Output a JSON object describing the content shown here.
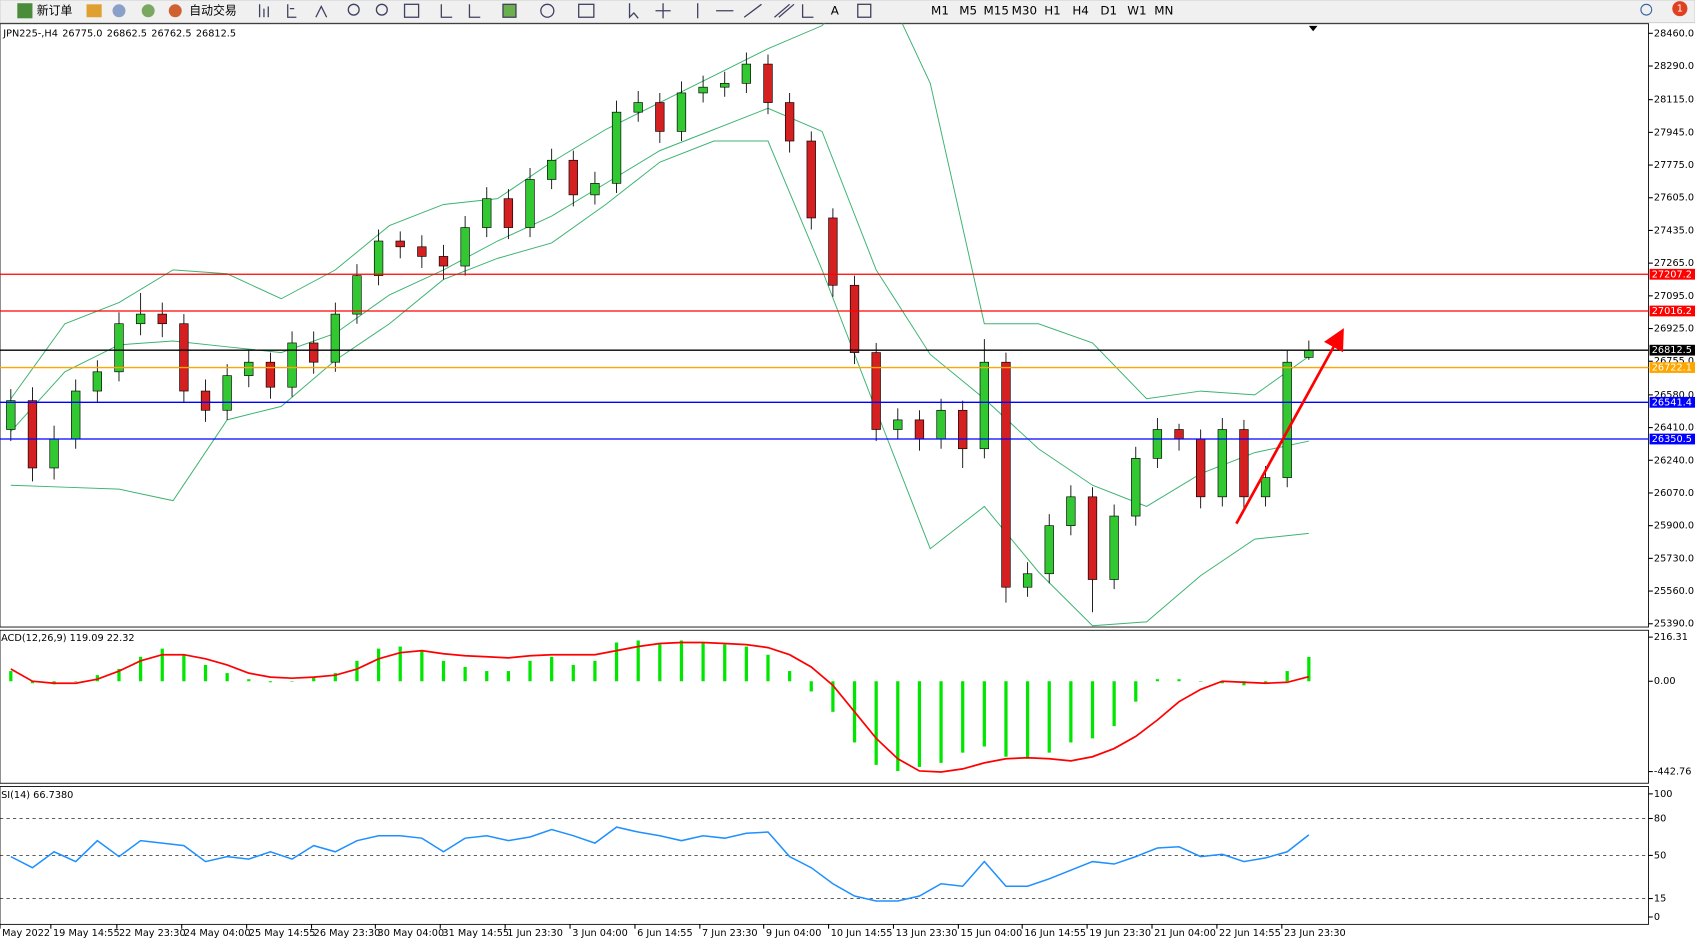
{
  "toolbar": {
    "new_order": "新订单",
    "auto_trading": "自动交易",
    "timeframes": [
      "M1",
      "M5",
      "M15",
      "M30",
      "H1",
      "H4",
      "D1",
      "W1",
      "MN"
    ],
    "badge": "1"
  },
  "chart_data": [
    {
      "type": "candlestick",
      "title": "JPN225-,H4",
      "ohlc_labels": [
        "26775.0",
        "26862.5",
        "26762.5",
        "26812.5"
      ],
      "up_color": "#32c832",
      "down_color": "#d42020",
      "xlim": [
        -0.5,
        75.7
      ],
      "xticks": [
        {
          "value": -0.5,
          "label": "May 2022"
        },
        {
          "value": 1.85,
          "label": "19 May 14:55"
        },
        {
          "value": 4.9,
          "label": "22 May 23:30"
        },
        {
          "value": 7.9,
          "label": "24 May 04:00"
        },
        {
          "value": 10.9,
          "label": "25 May 14:55"
        },
        {
          "value": 13.9,
          "label": "26 May 23:30"
        },
        {
          "value": 16.85,
          "label": "30 May 04:00"
        },
        {
          "value": 19.85,
          "label": "31 May 14:55"
        },
        {
          "value": 22.85,
          "label": "1 Jun 23:30"
        },
        {
          "value": 25.85,
          "label": "3 Jun 04:00"
        },
        {
          "value": 28.85,
          "label": "6 Jun 14:55"
        },
        {
          "value": 31.85,
          "label": "7 Jun 23:30"
        },
        {
          "value": 34.8,
          "label": "9 Jun 04:00"
        },
        {
          "value": 37.8,
          "label": "10 Jun 14:55"
        },
        {
          "value": 40.8,
          "label": "13 Jun 23:30"
        },
        {
          "value": 43.8,
          "label": "15 Jun 04:00"
        },
        {
          "value": 46.75,
          "label": "16 Jun 14:55"
        },
        {
          "value": 49.75,
          "label": "19 Jun 23:30"
        },
        {
          "value": 52.75,
          "label": "21 Jun 04:00"
        },
        {
          "value": 55.75,
          "label": "22 Jun 14:55"
        },
        {
          "value": 58.75,
          "label": "23 Jun 23:30"
        }
      ],
      "ylim": [
        25373,
        28510
      ],
      "yticks": [
        {
          "value": 28460,
          "label": "28460.0"
        },
        {
          "value": 28290,
          "label": "28290.0"
        },
        {
          "value": 28115,
          "label": "28115.0"
        },
        {
          "value": 27945,
          "label": "27945.0"
        },
        {
          "value": 27775,
          "label": "27775.0"
        },
        {
          "value": 27605,
          "label": "27605.0"
        },
        {
          "value": 27435,
          "label": "27435.0"
        },
        {
          "value": 27265,
          "label": "27265.0"
        },
        {
          "value": 27095,
          "label": "27095.0"
        },
        {
          "value": 26925,
          "label": "26925.0"
        },
        {
          "value": 26755,
          "label": "26755.0"
        },
        {
          "value": 26580,
          "label": "26580.0"
        },
        {
          "value": 26410,
          "label": "26410.0"
        },
        {
          "value": 26240,
          "label": "26240.0"
        },
        {
          "value": 26070,
          "label": "26070.0"
        },
        {
          "value": 25900,
          "label": "25900.0"
        },
        {
          "value": 25730,
          "label": "25730.0"
        },
        {
          "value": 25560,
          "label": "25560.0"
        },
        {
          "value": 25390,
          "label": "25390.0"
        }
      ],
      "open": [
        26400,
        26550,
        26200,
        26350,
        26600,
        26700,
        26950,
        27000,
        26950,
        26600,
        26500,
        26680,
        26750,
        26620,
        26850,
        26750,
        27000,
        27200,
        27380,
        27350,
        27300,
        27250,
        27450,
        27600,
        27450,
        27700,
        27800,
        27620,
        27680,
        28050,
        28100,
        27950,
        28150,
        28180,
        28200,
        28300,
        28100,
        27900,
        27500,
        27150,
        26800,
        26400,
        26450,
        26350,
        26500,
        26300,
        26750,
        25580,
        25650,
        25900,
        26050,
        25620,
        25950,
        26250,
        26400,
        26350,
        26050,
        26400,
        26050,
        26150,
        26775
      ],
      "high": [
        26610,
        26620,
        26420,
        26660,
        26760,
        27010,
        27110,
        27060,
        27000,
        26660,
        26740,
        26810,
        26800,
        26910,
        26910,
        27060,
        27260,
        27440,
        27430,
        27410,
        27360,
        27510,
        27660,
        27650,
        27760,
        27860,
        27850,
        27740,
        28110,
        28160,
        28150,
        28210,
        28240,
        28260,
        28360,
        28350,
        28150,
        27950,
        27550,
        27200,
        26850,
        26510,
        26500,
        26560,
        26550,
        26870,
        26800,
        25710,
        25960,
        26110,
        26100,
        26010,
        26310,
        26460,
        26430,
        26400,
        26460,
        26450,
        26210,
        26810,
        26862.5
      ],
      "low": [
        26340,
        26130,
        26140,
        26300,
        26540,
        26650,
        26890,
        26880,
        26540,
        26440,
        26450,
        26620,
        26560,
        26570,
        26690,
        26700,
        26950,
        27150,
        27290,
        27240,
        27180,
        27200,
        27400,
        27390,
        27400,
        27650,
        27560,
        27570,
        27630,
        28000,
        27890,
        27900,
        28100,
        28130,
        28150,
        28040,
        27840,
        27440,
        27090,
        26740,
        26340,
        26350,
        26290,
        26300,
        26200,
        26250,
        25500,
        25530,
        25600,
        25850,
        25450,
        25570,
        25900,
        26200,
        26290,
        25990,
        26000,
        25990,
        26000,
        26100,
        26762.5
      ],
      "close": [
        26550,
        26200,
        26350,
        26600,
        26700,
        26950,
        27000,
        26950,
        26600,
        26500,
        26680,
        26750,
        26620,
        26850,
        26750,
        27000,
        27200,
        27380,
        27350,
        27300,
        27250,
        27450,
        27600,
        27450,
        27700,
        27800,
        27620,
        27680,
        28050,
        28100,
        27950,
        28150,
        28180,
        28200,
        28300,
        28100,
        27900,
        27500,
        27150,
        26800,
        26400,
        26450,
        26350,
        26500,
        26300,
        26750,
        25580,
        25650,
        25900,
        26050,
        25620,
        25950,
        26250,
        26400,
        26350,
        26050,
        26400,
        26050,
        26150,
        26750,
        26812.5
      ],
      "bollinger": {
        "color": "#3cb371",
        "x": [
          0,
          2.5,
          5,
          7.5,
          10,
          12.5,
          15,
          17.5,
          20,
          22.5,
          25,
          27.5,
          30,
          32.5,
          35,
          37.5,
          40,
          42.5,
          45,
          47.5,
          50,
          52.5,
          55,
          57.5,
          60
        ],
        "upper": [
          26560,
          26950,
          27060,
          27230,
          27210,
          27080,
          27230,
          27460,
          27570,
          27600,
          27790,
          27960,
          28100,
          28240,
          28380,
          28500,
          28800,
          28200,
          26950,
          26950,
          26850,
          26560,
          26600,
          26580,
          26780
        ],
        "middle": [
          26390,
          26700,
          26840,
          26860,
          26830,
          26800,
          26900,
          27100,
          27230,
          27380,
          27510,
          27680,
          27850,
          27960,
          28070,
          27950,
          27230,
          26790,
          26560,
          26300,
          26110,
          26000,
          26170,
          26280,
          26340
        ],
        "lower": [
          26110,
          26100,
          26090,
          26030,
          26450,
          26520,
          26760,
          26950,
          27180,
          27290,
          27370,
          27570,
          27790,
          27900,
          27900,
          27230,
          26500,
          25780,
          26000,
          25660,
          25380,
          25400,
          25640,
          25830,
          25860
        ]
      },
      "hlines": [
        {
          "value": 27207.2,
          "color": "#ff0000"
        },
        {
          "value": 27016.2,
          "color": "#ff0000"
        },
        {
          "value": 26812.5,
          "color": "#000000"
        },
        {
          "value": 26722.1,
          "color": "#ffa500"
        },
        {
          "value": 26541.4,
          "color": "#0000ff"
        },
        {
          "value": 26350.5,
          "color": "#0000ff"
        }
      ]
    },
    {
      "type": "macd",
      "title": "ACD(12,26,9) 119.09 22.32",
      "ylim": [
        -500,
        250
      ],
      "yticks": [
        216.31,
        {
          "value": 0,
          "label": "0.00"
        },
        -442.76
      ],
      "histogram": {
        "color": "#00e600",
        "values": [
          50,
          -10,
          -15,
          0,
          30,
          60,
          120,
          160,
          130,
          80,
          40,
          10,
          -5,
          0,
          20,
          40,
          100,
          160,
          170,
          150,
          100,
          70,
          50,
          50,
          100,
          120,
          80,
          100,
          190,
          200,
          180,
          200,
          190,
          180,
          170,
          130,
          50,
          -50,
          -150,
          -300,
          -410,
          -440,
          -420,
          -400,
          -350,
          -320,
          -370,
          -380,
          -350,
          -300,
          -280,
          -220,
          -100,
          10,
          10,
          0,
          -10,
          -20,
          -10,
          50,
          119.09
        ]
      },
      "signal": {
        "color": "#ff0000",
        "values": [
          60,
          0,
          -10,
          -10,
          10,
          50,
          100,
          130,
          130,
          110,
          80,
          40,
          20,
          15,
          20,
          30,
          60,
          110,
          140,
          150,
          135,
          125,
          120,
          115,
          125,
          130,
          130,
          130,
          150,
          170,
          185,
          190,
          190,
          185,
          180,
          165,
          130,
          70,
          -20,
          -150,
          -280,
          -380,
          -440,
          -445,
          -430,
          -400,
          -380,
          -375,
          -380,
          -390,
          -370,
          -330,
          -270,
          -190,
          -100,
          -40,
          0,
          -5,
          -10,
          -5,
          22.32
        ]
      }
    },
    {
      "type": "line",
      "title": "SI(14) 66.7380",
      "ylim": [
        -6,
        106
      ],
      "yticks": [
        100,
        80,
        50,
        15,
        0
      ],
      "color": "#1e90ff",
      "values": [
        49,
        40,
        53,
        45,
        62,
        49,
        62,
        60,
        58,
        45,
        49,
        47,
        53,
        47,
        58,
        53,
        62,
        66,
        66,
        64,
        53,
        64,
        66,
        62,
        65,
        71,
        66,
        60,
        73,
        69,
        66,
        62,
        66,
        64,
        68,
        69,
        49,
        40,
        27,
        17,
        13,
        13,
        17,
        27,
        25,
        45,
        25,
        25,
        31,
        38,
        45,
        43,
        49,
        56,
        57,
        49,
        51,
        45,
        48,
        53,
        66.738
      ]
    }
  ]
}
